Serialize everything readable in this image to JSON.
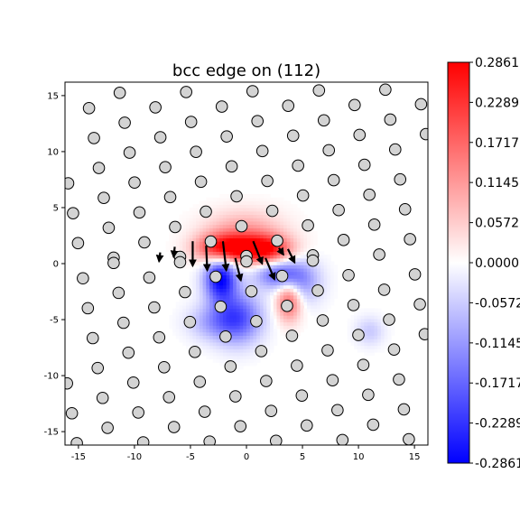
{
  "chart_data": {
    "type": "heatmap",
    "title": "bcc edge on (112)",
    "xlabel": "",
    "ylabel": "",
    "xlim": [
      -16.2,
      16.2
    ],
    "ylim": [
      -16.2,
      16.2
    ],
    "x_ticks": [
      -15,
      -10,
      -5,
      0,
      5,
      10,
      15
    ],
    "y_ticks": [
      -15,
      -10,
      -5,
      0,
      5,
      10,
      15
    ],
    "grid": false,
    "colormap": "bwr",
    "colorbar": {
      "min": -0.2861,
      "max": 0.2861,
      "tick_values": [
        0.2861,
        0.2289,
        0.1717,
        0.1145,
        0.0572,
        0.0,
        -0.0572,
        -0.1145,
        -0.1717,
        -0.2289,
        -0.2861
      ],
      "tick_labels": [
        "0.2861",
        "0.2289",
        "0.1717",
        "0.1145",
        "0.0572",
        "0.0000",
        "-0.0572",
        "-0.1145",
        "-0.1717",
        "-0.2289",
        "-0.2861"
      ]
    },
    "field_lobes": [
      {
        "x": -2.0,
        "y": 1.4,
        "sx": 1.7,
        "sy": 0.9,
        "amp": 0.28
      },
      {
        "x": 1.6,
        "y": 1.3,
        "sx": 1.7,
        "sy": 0.9,
        "amp": 0.28
      },
      {
        "x": -0.2,
        "y": 3.0,
        "sx": 2.4,
        "sy": 1.3,
        "amp": 0.1
      },
      {
        "x": 3.8,
        "y": -3.2,
        "sx": 0.8,
        "sy": 1.3,
        "amp": 0.2
      },
      {
        "x": -2.3,
        "y": -1.3,
        "sx": 1.0,
        "sy": 1.4,
        "amp": -0.28
      },
      {
        "x": -0.8,
        "y": -4.8,
        "sx": 1.5,
        "sy": 1.6,
        "amp": -0.2
      },
      {
        "x": 2.8,
        "y": -0.9,
        "sx": 1.4,
        "sy": 0.9,
        "amp": -0.17
      },
      {
        "x": 4.8,
        "y": -1.6,
        "sx": 1.3,
        "sy": 1.4,
        "amp": -0.12
      },
      {
        "x": -3.2,
        "y": -5.2,
        "sx": 1.5,
        "sy": 1.1,
        "amp": -0.08
      },
      {
        "x": 11.0,
        "y": -6.0,
        "sx": 0.9,
        "sy": 0.9,
        "amp": -0.06
      }
    ],
    "lattice": {
      "a1": [
        2.744,
        1.37
      ],
      "a2": [
        -0.44,
        2.67
      ],
      "origin": [
        0.0,
        0.67
      ],
      "bottom_origin": [
        0.0,
        0.2
      ],
      "region": [
        -16.2,
        16.2,
        -16.2,
        16.2
      ]
    },
    "arrows": [
      {
        "x": -4.8,
        "y": 2.0,
        "dx": 0.0,
        "dy": -2.2
      },
      {
        "x": -3.6,
        "y": 1.6,
        "dx": 0.1,
        "dy": -2.2
      },
      {
        "x": -2.1,
        "y": 2.0,
        "dx": 0.3,
        "dy": -2.6
      },
      {
        "x": -1.0,
        "y": 0.5,
        "dx": 0.5,
        "dy": -2.0
      },
      {
        "x": 0.6,
        "y": 2.0,
        "dx": 0.8,
        "dy": -2.0
      },
      {
        "x": 1.7,
        "y": 0.5,
        "dx": 0.8,
        "dy": -1.9
      },
      {
        "x": 3.7,
        "y": 1.3,
        "dx": 0.6,
        "dy": -1.2
      },
      {
        "x": 2.9,
        "y": 1.4,
        "dx": 0.4,
        "dy": -0.6
      },
      {
        "x": -6.4,
        "y": 1.5,
        "dx": -0.1,
        "dy": -0.9
      },
      {
        "x": -7.7,
        "y": 1.0,
        "dx": -0.1,
        "dy": -0.8
      }
    ]
  }
}
